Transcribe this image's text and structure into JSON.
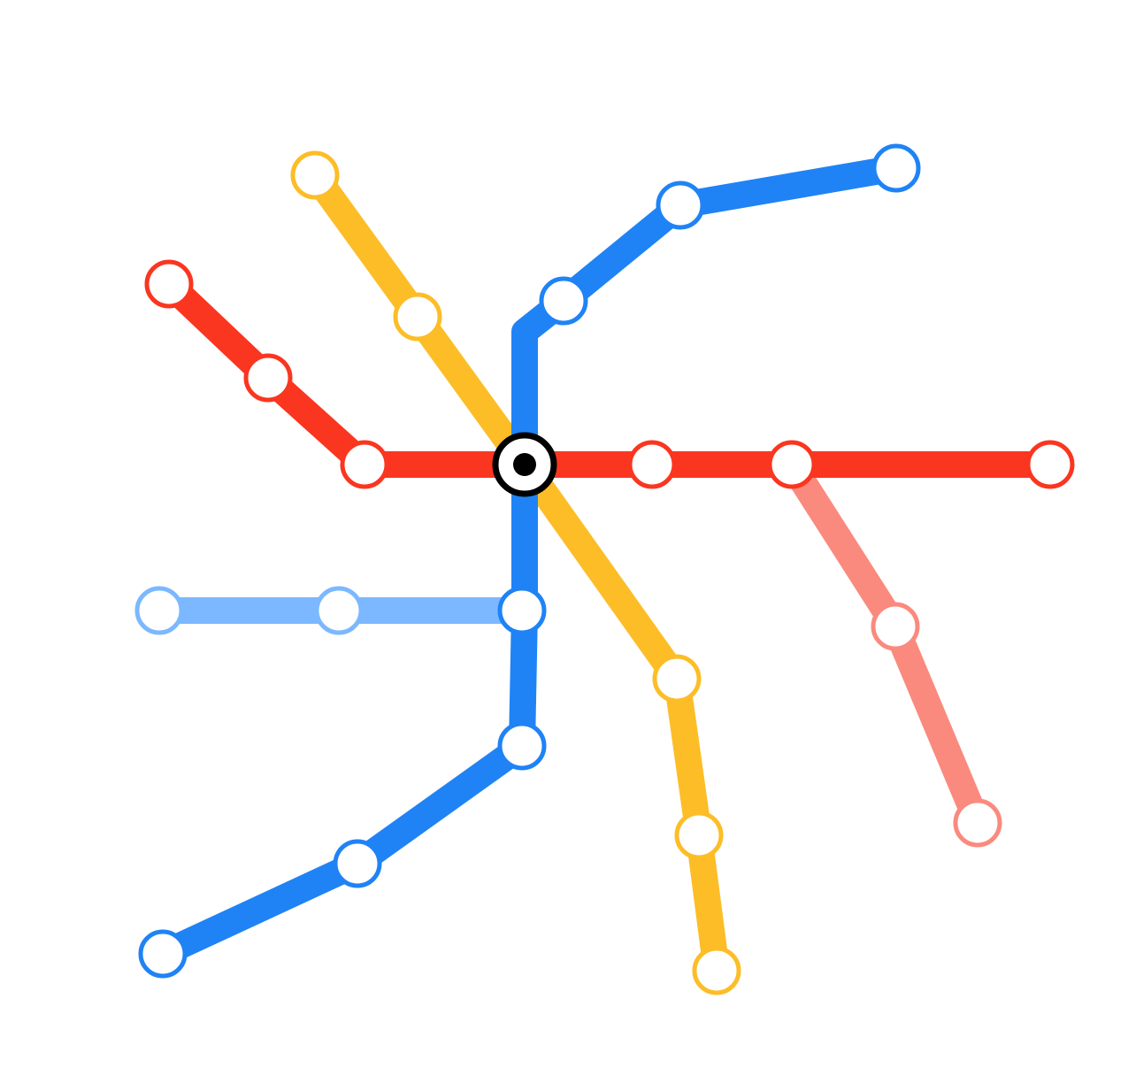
{
  "map": {
    "background": "#ffffff",
    "lines": [
      {
        "id": "light-blue",
        "color": "#7bb8ff",
        "station_count": 3
      },
      {
        "id": "pink",
        "color": "#fa8a7e",
        "station_count": 3
      },
      {
        "id": "yellow",
        "color": "#fcbd27",
        "station_count": 6
      },
      {
        "id": "blue",
        "color": "#1f83f5",
        "station_count": 8
      },
      {
        "id": "red",
        "color": "#fa3620",
        "station_count": 7
      }
    ],
    "interchange": {
      "icon": "central-interchange-icon",
      "ring_color": "#000000",
      "fill_color": "#ffffff",
      "dot_color": "#000000"
    }
  }
}
